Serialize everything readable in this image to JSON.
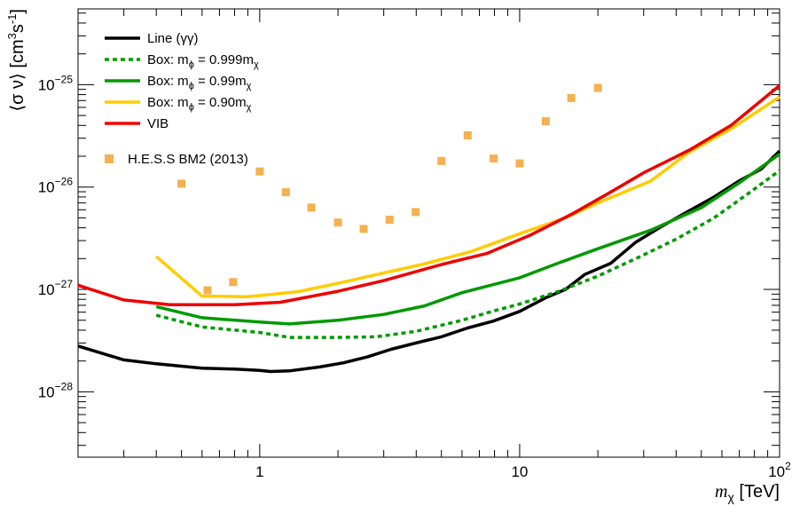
{
  "chart_data": {
    "type": "line",
    "xscale": "log",
    "yscale": "log",
    "xlim": [
      0.2,
      100
    ],
    "ylim": [
      2.3e-29,
      5.5e-25
    ],
    "xticks": [
      {
        "value": 1,
        "label": "1"
      },
      {
        "value": 10,
        "label": "10"
      },
      {
        "value": 100,
        "label": "10",
        "sup": "2"
      }
    ],
    "yticks": [
      {
        "value": 1e-28,
        "label": "10",
        "sup": "−28"
      },
      {
        "value": 1e-27,
        "label": "10",
        "sup": "−27"
      },
      {
        "value": 1e-26,
        "label": "10",
        "sup": "−26"
      },
      {
        "value": 1e-25,
        "label": "10",
        "sup": "−25"
      }
    ],
    "xlabel": {
      "symbol": "m",
      "sub": "χ",
      "unit": " [TeV]"
    },
    "ylabel": {
      "pre": "⟨σ ν⟩  [cm",
      "sup1": "3",
      "mid": "s",
      "sup2": "-1",
      "post": "]"
    },
    "legend_position": "top-left",
    "series": [
      {
        "name": "Line (γγ)",
        "color": "#000000",
        "dash": "solid",
        "points": [
          [
            0.2,
            2.8e-28
          ],
          [
            0.3,
            2.05e-28
          ],
          [
            0.4,
            1.88e-28
          ],
          [
            0.6,
            1.7e-28
          ],
          [
            0.8,
            1.67e-28
          ],
          [
            1.0,
            1.62e-28
          ],
          [
            1.1,
            1.58e-28
          ],
          [
            1.3,
            1.6e-28
          ],
          [
            1.7,
            1.75e-28
          ],
          [
            2.1,
            1.92e-28
          ],
          [
            2.6,
            2.2e-28
          ],
          [
            3.2,
            2.6e-28
          ],
          [
            4.1,
            3.05e-28
          ],
          [
            5.0,
            3.45e-28
          ],
          [
            6.3,
            4.2e-28
          ],
          [
            7.9,
            4.9e-28
          ],
          [
            10,
            6.1e-28
          ],
          [
            12.6,
            8.3e-28
          ],
          [
            15,
            1e-27
          ],
          [
            17.8,
            1.4e-27
          ],
          [
            22.4,
            1.8e-27
          ],
          [
            28,
            2.9e-27
          ],
          [
            35,
            4.1e-27
          ],
          [
            44,
            5.7e-27
          ],
          [
            56,
            8e-27
          ],
          [
            70,
            1.15e-26
          ],
          [
            85,
            1.5e-26
          ],
          [
            100,
            2.25e-26
          ]
        ]
      },
      {
        "name": "Box: mϕ = 0.999mχ",
        "color": "#009900",
        "dash": "dotted",
        "points": [
          [
            0.4,
            5.6e-28
          ],
          [
            0.6,
            4.3e-28
          ],
          [
            1.0,
            3.8e-28
          ],
          [
            1.3,
            3.4e-28
          ],
          [
            2.0,
            3.4e-28
          ],
          [
            2.8,
            3.45e-28
          ],
          [
            4,
            3.9e-28
          ],
          [
            6,
            5e-28
          ],
          [
            8,
            6.2e-28
          ],
          [
            10,
            7.2e-28
          ],
          [
            14,
            9.5e-28
          ],
          [
            20,
            1.35e-27
          ],
          [
            28,
            2e-27
          ],
          [
            40,
            3.1e-27
          ],
          [
            56,
            5e-27
          ],
          [
            75,
            8.5e-27
          ],
          [
            100,
            1.45e-26
          ]
        ]
      },
      {
        "name": "Box: mϕ = 0.99mχ",
        "color": "#009900",
        "dash": "solid",
        "points": [
          [
            0.4,
            6.8e-28
          ],
          [
            0.6,
            5.3e-28
          ],
          [
            1.0,
            4.8e-28
          ],
          [
            1.3,
            4.6e-28
          ],
          [
            2.0,
            5e-28
          ],
          [
            3.0,
            5.7e-28
          ],
          [
            4.3,
            6.9e-28
          ],
          [
            6.0,
            9.3e-28
          ],
          [
            10,
            1.3e-27
          ],
          [
            14,
            1.8e-27
          ],
          [
            20,
            2.5e-27
          ],
          [
            32,
            3.8e-27
          ],
          [
            50,
            6.3e-27
          ],
          [
            70,
            1.1e-26
          ],
          [
            100,
            2.1e-26
          ]
        ]
      },
      {
        "name": "Box: mϕ = 0.90mχ",
        "color": "#ffcc00",
        "dash": "solid",
        "points": [
          [
            0.4,
            2.1e-27
          ],
          [
            0.6,
            8.6e-28
          ],
          [
            0.9,
            8.5e-28
          ],
          [
            1.4,
            9.5e-28
          ],
          [
            2.0,
            1.15e-27
          ],
          [
            3.0,
            1.45e-27
          ],
          [
            4.2,
            1.75e-27
          ],
          [
            6.5,
            2.35e-27
          ],
          [
            10,
            3.5e-27
          ],
          [
            15,
            5e-27
          ],
          [
            20,
            7e-27
          ],
          [
            32,
            1.15e-26
          ],
          [
            45,
            2.2e-26
          ],
          [
            65,
            3.7e-26
          ],
          [
            100,
            7.6e-26
          ]
        ]
      },
      {
        "name": "VIB",
        "color": "#ee0000",
        "dash": "solid",
        "points": [
          [
            0.2,
            1.1e-27
          ],
          [
            0.3,
            7.9e-28
          ],
          [
            0.45,
            7.1e-28
          ],
          [
            0.8,
            7.1e-28
          ],
          [
            1.2,
            7.5e-28
          ],
          [
            2.0,
            9.6e-28
          ],
          [
            3.0,
            1.22e-27
          ],
          [
            5.0,
            1.75e-27
          ],
          [
            7.5,
            2.25e-27
          ],
          [
            11,
            3.4e-27
          ],
          [
            16,
            5.5e-27
          ],
          [
            22,
            8.7e-27
          ],
          [
            30,
            1.38e-26
          ],
          [
            45,
            2.3e-26
          ],
          [
            65,
            4e-26
          ],
          [
            100,
            9.8e-26
          ]
        ]
      }
    ],
    "scatter": {
      "name": "H.E.S.S BM2 (2013)",
      "color": "#f5b050",
      "points": [
        [
          0.5,
          1.08e-26
        ],
        [
          0.63,
          9.8e-28
        ],
        [
          0.79,
          1.18e-27
        ],
        [
          1.0,
          1.42e-26
        ],
        [
          1.26,
          8.9e-27
        ],
        [
          1.58,
          6.3e-27
        ],
        [
          2.0,
          4.5e-27
        ],
        [
          2.51,
          3.9e-27
        ],
        [
          3.16,
          4.8e-27
        ],
        [
          3.98,
          5.7e-27
        ],
        [
          5.0,
          1.8e-26
        ],
        [
          6.31,
          3.2e-26
        ],
        [
          7.94,
          1.9e-26
        ],
        [
          10,
          1.7e-26
        ],
        [
          12.6,
          4.4e-26
        ],
        [
          15.8,
          7.4e-26
        ],
        [
          20,
          9.3e-26
        ]
      ]
    },
    "legend_entries": [
      {
        "label": "Line (γγ)",
        "color": "#000000",
        "dash": "solid",
        "kind": "line"
      },
      {
        "label": "Box: m",
        "sub1": "ϕ",
        "label2": " = 0.999m",
        "sub2": "χ",
        "color": "#009900",
        "dash": "dotted",
        "kind": "line"
      },
      {
        "label": "Box: m",
        "sub1": "ϕ",
        "label2": " = 0.99m",
        "sub2": "χ",
        "color": "#009900",
        "dash": "solid",
        "kind": "line"
      },
      {
        "label": "Box: m",
        "sub1": "ϕ",
        "label2": " = 0.90m",
        "sub2": "χ",
        "color": "#ffcc00",
        "dash": "solid",
        "kind": "line"
      },
      {
        "label": "VIB",
        "color": "#ee0000",
        "dash": "solid",
        "kind": "line"
      },
      {
        "label": "H.E.S.S BM2 (2013)",
        "color": "#f5b050",
        "kind": "marker"
      }
    ]
  }
}
